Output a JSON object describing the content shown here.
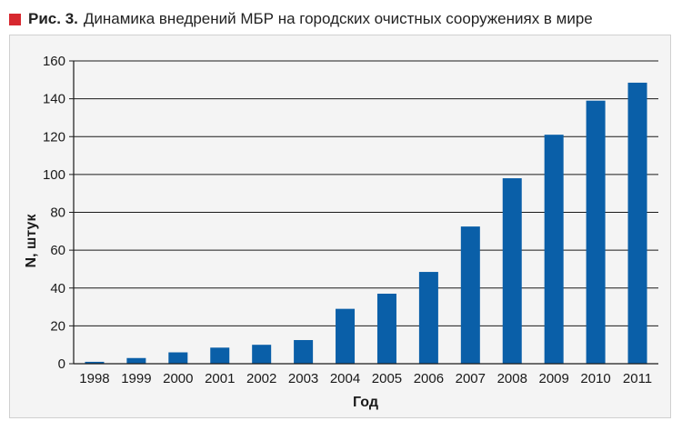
{
  "caption": {
    "figure_label": "Рис. 3.",
    "title": "Динамика внедрений МБР на городских очистных сооружениях в мире"
  },
  "colors": {
    "bar": "#0a5fa8",
    "marker": "#d7282f",
    "panel_bg": "#f4f4f4"
  },
  "chart_data": {
    "type": "bar",
    "title": "Динамика внедрений МБР на городских очистных сооружениях в мире",
    "xlabel": "Год",
    "ylabel": "N, штук",
    "categories": [
      "1998",
      "1999",
      "2000",
      "2001",
      "2002",
      "2003",
      "2004",
      "2005",
      "2006",
      "2007",
      "2008",
      "2009",
      "2010",
      "2011"
    ],
    "values": [
      1,
      3,
      6,
      8.5,
      10,
      12.5,
      29,
      37,
      48.5,
      72.5,
      98,
      121,
      139,
      148.5
    ],
    "yticks": [
      0,
      20,
      40,
      60,
      80,
      100,
      120,
      140,
      160
    ],
    "ylim": [
      0,
      160
    ],
    "grid": "horizontal"
  }
}
